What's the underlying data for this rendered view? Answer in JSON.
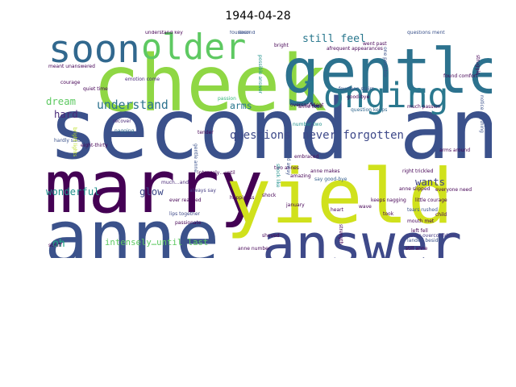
{
  "figure": {
    "title": "1944-04-28"
  },
  "chart_data": {
    "type": "wordcloud",
    "title": "1944-04-28",
    "words": [
      {
        "text": "second anne",
        "weight": 100,
        "color": "#3b518b",
        "orient": "h"
      },
      {
        "text": "cheek",
        "weight": 92,
        "color": "#8fd744",
        "orient": "h"
      },
      {
        "text": "marry",
        "weight": 88,
        "color": "#440154",
        "orient": "h"
      },
      {
        "text": "yield",
        "weight": 88,
        "color": "#d0e11c",
        "orient": "h"
      },
      {
        "text": "anne",
        "weight": 86,
        "color": "#3b528b",
        "orient": "h"
      },
      {
        "text": "gentle",
        "weight": 72,
        "color": "#2c728e",
        "orient": "h"
      },
      {
        "text": "answer",
        "weight": 62,
        "color": "#3e4989",
        "orient": "h"
      },
      {
        "text": "soon",
        "weight": 48,
        "color": "#31688e",
        "orient": "h"
      },
      {
        "text": "older",
        "weight": 44,
        "color": "#5ec962",
        "orient": "h"
      },
      {
        "text": "longing",
        "weight": 42,
        "color": "#2a788e",
        "orient": "h"
      },
      {
        "text": "understand",
        "weight": 18,
        "color": "#2c728e",
        "orient": "h"
      },
      {
        "text": "questions",
        "weight": 17,
        "color": "#3e4a89",
        "orient": "h"
      },
      {
        "text": "never forgotten",
        "weight": 17,
        "color": "#3e4989",
        "orient": "h"
      },
      {
        "text": "still feel",
        "weight": 16,
        "color": "#2a788e",
        "orient": "h"
      },
      {
        "text": "wonderful",
        "weight": 15,
        "color": "#21918c",
        "orient": "h"
      },
      {
        "text": "glow",
        "weight": 15,
        "color": "#3e4989",
        "orient": "h"
      },
      {
        "text": "dream",
        "weight": 15,
        "color": "#5ec962",
        "orient": "h"
      },
      {
        "text": "hard",
        "weight": 15,
        "color": "#482878",
        "orient": "h"
      },
      {
        "text": "arms",
        "weight": 14,
        "color": "#2a788e",
        "orient": "h"
      },
      {
        "text": "wants",
        "weight": 15,
        "color": "#414487",
        "orient": "h"
      },
      {
        "text": "oh",
        "weight": 16,
        "color": "#22a884",
        "orient": "h"
      },
      {
        "text": "intensely…until last",
        "weight": 13,
        "color": "#5ec962",
        "orient": "h"
      },
      {
        "text": "fourteen",
        "weight": 6,
        "color": "#3b528b",
        "orient": "h"
      },
      {
        "text": "bright",
        "weight": 6,
        "color": "#440154",
        "orient": "h"
      },
      {
        "text": "emotion come",
        "weight": 5,
        "color": "#482878",
        "orient": "h"
      },
      {
        "text": "fourteen stairs",
        "weight": 5,
        "color": "#3b528b",
        "orient": "h"
      },
      {
        "text": "question keeps",
        "weight": 5,
        "color": "#31688e",
        "orient": "h"
      },
      {
        "text": "anne took",
        "weight": 6,
        "color": "#440154",
        "orient": "h"
      },
      {
        "text": "passion",
        "weight": 5,
        "color": "#35b779",
        "orient": "h"
      },
      {
        "text": "recover",
        "weight": 5,
        "color": "#482878",
        "orient": "h"
      },
      {
        "text": "nagging",
        "weight": 5,
        "color": "#31688e",
        "orient": "h"
      },
      {
        "text": "number two",
        "weight": 5,
        "color": "#21918c",
        "orient": "h"
      },
      {
        "text": "intensely…until",
        "weight": 6,
        "color": "#440154",
        "orient": "h"
      },
      {
        "text": "much…and",
        "weight": 5,
        "color": "#482878",
        "orient": "h"
      },
      {
        "text": "always say",
        "weight": 5,
        "color": "#443a83",
        "orient": "h"
      },
      {
        "text": "lips together",
        "weight": 5,
        "color": "#3e4989",
        "orient": "h"
      },
      {
        "text": "passionate",
        "weight": 5,
        "color": "#440154",
        "orient": "h"
      },
      {
        "text": "say good-bye",
        "weight": 5,
        "color": "#355f8d",
        "orient": "h"
      },
      {
        "text": "keeps nagging",
        "weight": 5,
        "color": "#440154",
        "orient": "h"
      },
      {
        "text": "right trickled",
        "weight": 5,
        "color": "#440154",
        "orient": "h"
      },
      {
        "text": "anne slipped",
        "weight": 6,
        "color": "#440154",
        "orient": "h"
      },
      {
        "text": "tears rushed",
        "weight": 5,
        "color": "#3b528b",
        "orient": "h"
      },
      {
        "text": "mouth met",
        "weight": 5,
        "color": "#440154",
        "orient": "h"
      },
      {
        "text": "left fell",
        "weight": 4,
        "color": "#440154",
        "orient": "h"
      },
      {
        "text": "landed beside",
        "weight": 4,
        "color": "#3b528b",
        "orient": "h"
      },
      {
        "text": "still anne",
        "weight": 5,
        "color": "#440154",
        "orient": "h"
      },
      {
        "text": "never overconfident",
        "weight": 4,
        "color": "#443983",
        "orient": "h"
      },
      {
        "text": "much passion",
        "weight": 5,
        "color": "#440154",
        "orient": "h"
      },
      {
        "text": "questions ment",
        "weight": 5,
        "color": "#3b528b",
        "orient": "h"
      },
      {
        "text": "found comfort",
        "weight": 4,
        "color": "#440154",
        "orient": "h"
      },
      {
        "text": "anne makes",
        "weight": 4,
        "color": "#440154",
        "orient": "h"
      },
      {
        "text": "two annes",
        "weight": 4,
        "color": "#440154",
        "orient": "h"
      },
      {
        "text": "hardly said",
        "weight": 4,
        "color": "#3b528b",
        "orient": "h"
      },
      {
        "text": "slipped away",
        "weight": 5,
        "color": "#3b528b",
        "orient": "v"
      },
      {
        "text": "gentle anne",
        "weight": 4,
        "color": "#3b528b",
        "orient": "v"
      },
      {
        "text": "possible answer",
        "weight": 4,
        "color": "#21918c",
        "orient": "v"
      },
      {
        "text": "one possible",
        "weight": 4,
        "color": "#3b528b",
        "orient": "v"
      },
      {
        "text": "shock like",
        "weight": 4,
        "color": "#21918c",
        "orient": "v"
      },
      {
        "text": "bright lights",
        "weight": 4,
        "color": "#bddf26",
        "orient": "v"
      },
      {
        "text": "notice anything",
        "weight": 4,
        "color": "#3b528b",
        "orient": "v"
      },
      {
        "text": "meant unanswered",
        "weight": 4,
        "color": "#440154",
        "orient": "h"
      },
      {
        "text": "understand key",
        "weight": 3,
        "color": "#440154",
        "orient": "h"
      },
      {
        "text": "second",
        "weight": 3,
        "color": "#3b528b",
        "orient": "h"
      },
      {
        "text": "courage",
        "weight": 3,
        "color": "#440154",
        "orient": "h"
      },
      {
        "text": "quiet time",
        "weight": 3,
        "color": "#440154",
        "orient": "h"
      },
      {
        "text": "tender",
        "weight": 3,
        "color": "#440154",
        "orient": "h"
      },
      {
        "text": "eight-thirty",
        "weight": 3,
        "color": "#440154",
        "orient": "h"
      },
      {
        "text": "embraced",
        "weight": 3,
        "color": "#440154",
        "orient": "h"
      },
      {
        "text": "amazing",
        "weight": 3,
        "color": "#440154",
        "orient": "h"
      },
      {
        "text": "happiness",
        "weight": 3,
        "color": "#440154",
        "orient": "h"
      },
      {
        "text": "ever reached",
        "weight": 3,
        "color": "#440154",
        "orient": "h"
      },
      {
        "text": "wave",
        "weight": 3,
        "color": "#440154",
        "orient": "h"
      },
      {
        "text": "january",
        "weight": 3,
        "color": "#440154",
        "orient": "h"
      },
      {
        "text": "shock",
        "weight": 3,
        "color": "#440154",
        "orient": "h"
      },
      {
        "text": "struggle",
        "weight": 3,
        "color": "#440154",
        "orient": "v"
      },
      {
        "text": "everyone need",
        "weight": 3,
        "color": "#440154",
        "orient": "h"
      },
      {
        "text": "little courage",
        "weight": 3,
        "color": "#440154",
        "orient": "h"
      },
      {
        "text": "arms around",
        "weight": 3,
        "color": "#440154",
        "orient": "h"
      },
      {
        "text": "took",
        "weight": 3,
        "color": "#440154",
        "orient": "h"
      },
      {
        "text": "child",
        "weight": 3,
        "color": "#440154",
        "orient": "h"
      },
      {
        "text": "heart",
        "weight": 3,
        "color": "#440154",
        "orient": "h"
      },
      {
        "text": "anne number",
        "weight": 3,
        "color": "#440154",
        "orient": "h"
      },
      {
        "text": "strength",
        "weight": 3,
        "color": "#440154",
        "orient": "v"
      },
      {
        "text": "shoved",
        "weight": 3,
        "color": "#440154",
        "orient": "h"
      },
      {
        "text": "overconfident",
        "weight": 3,
        "color": "#440154",
        "orient": "h"
      },
      {
        "text": "good-bye",
        "weight": 3,
        "color": "#440154",
        "orient": "h"
      },
      {
        "text": "afrequent appearances",
        "weight": 3,
        "color": "#440154",
        "orient": "h"
      },
      {
        "text": "went past",
        "weight": 3,
        "color": "#440154",
        "orient": "h"
      },
      {
        "text": "scruff",
        "weight": 3,
        "color": "#440154",
        "orient": "h"
      }
    ]
  }
}
